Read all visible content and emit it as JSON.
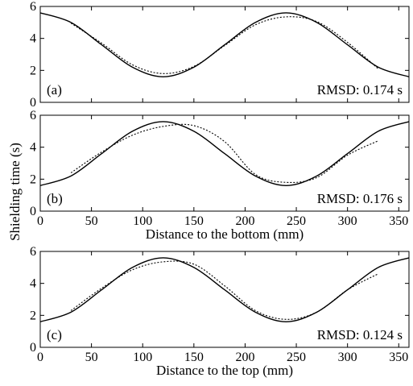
{
  "chart_data": {
    "type": "line",
    "ylabel": "Shielding time (s)",
    "panels": [
      {
        "label": "(a)",
        "annotation": "RMSD: 0.174 s",
        "xlabel": "",
        "show_x_ticks": false,
        "xlim": [
          0,
          360
        ],
        "ylim": [
          0,
          6
        ],
        "yticks": [
          0,
          2,
          4,
          6
        ],
        "xticks": [],
        "series": [
          {
            "style": "solid",
            "x": [
              0,
              30,
              60,
              90,
              120,
              150,
              180,
              210,
              240,
              270,
              300,
              330,
              360
            ],
            "y": [
              5.6,
              5.0,
              3.6,
              2.2,
              1.6,
              2.2,
              3.6,
              5.0,
              5.6,
              5.0,
              3.6,
              2.2,
              1.6
            ]
          },
          {
            "style": "dotted",
            "x": [
              30,
              60,
              90,
              120,
              150,
              180,
              210,
              240,
              270,
              300,
              330
            ],
            "y": [
              4.95,
              3.7,
              2.35,
              1.8,
              2.25,
              3.55,
              4.85,
              5.35,
              5.05,
              3.75,
              2.1
            ]
          }
        ]
      },
      {
        "label": "(b)",
        "annotation": "RMSD: 0.176 s",
        "xlabel": "Distance to the bottom (mm)",
        "show_x_ticks": true,
        "xlim": [
          0,
          360
        ],
        "ylim": [
          0,
          6
        ],
        "yticks": [
          0,
          2,
          4,
          6
        ],
        "xticks": [
          0,
          50,
          100,
          150,
          200,
          250,
          300,
          350
        ],
        "series": [
          {
            "style": "solid",
            "x": [
              0,
              30,
              60,
              90,
              120,
              150,
              180,
              210,
              240,
              270,
              300,
              330,
              360
            ],
            "y": [
              1.6,
              2.2,
              3.6,
              5.0,
              5.6,
              5.0,
              3.6,
              2.2,
              1.6,
              2.2,
              3.6,
              5.0,
              5.6
            ]
          },
          {
            "style": "dotted",
            "x": [
              30,
              60,
              90,
              120,
              150,
              180,
              210,
              240,
              270,
              300,
              330
            ],
            "y": [
              2.4,
              3.7,
              4.75,
              5.3,
              5.35,
              4.35,
              2.3,
              1.8,
              2.1,
              3.5,
              4.4
            ]
          }
        ]
      },
      {
        "label": "(c)",
        "annotation": "RMSD: 0.124 s",
        "xlabel": "Distance to the top (mm)",
        "show_x_ticks": true,
        "xlim": [
          0,
          360
        ],
        "ylim": [
          0,
          6
        ],
        "yticks": [
          0,
          2,
          4,
          6
        ],
        "xticks": [
          0,
          50,
          100,
          150,
          200,
          250,
          300,
          350
        ],
        "series": [
          {
            "style": "solid",
            "x": [
              0,
              30,
              60,
              90,
              120,
              150,
              180,
              210,
              240,
              270,
              300,
              330,
              360
            ],
            "y": [
              1.6,
              2.2,
              3.6,
              5.0,
              5.6,
              5.0,
              3.6,
              2.2,
              1.6,
              2.2,
              3.6,
              5.0,
              5.6
            ]
          },
          {
            "style": "dotted",
            "x": [
              30,
              60,
              90,
              120,
              150,
              180,
              210,
              240,
              270,
              300,
              330
            ],
            "y": [
              2.3,
              3.7,
              4.85,
              5.35,
              5.2,
              3.85,
              2.3,
              1.75,
              2.2,
              3.6,
              4.6
            ]
          }
        ]
      }
    ]
  }
}
